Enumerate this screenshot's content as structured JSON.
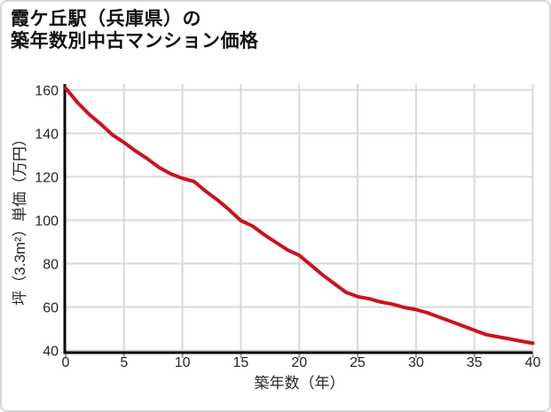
{
  "card": {
    "title_line1": "霞ケ丘駅（兵庫県）の",
    "title_line2": "築年数別中古マンション価格"
  },
  "chart_data": {
    "type": "line",
    "title": "霞ケ丘駅（兵庫県）の築年数別中古マンション価格",
    "xlabel": "築年数（年）",
    "ylabel": "坪（3.3m²）単価（万円）",
    "x": [
      0,
      1,
      2,
      3,
      4,
      5,
      6,
      7,
      8,
      9,
      10,
      11,
      12,
      13,
      14,
      15,
      16,
      17,
      18,
      19,
      20,
      21,
      22,
      23,
      24,
      25,
      26,
      27,
      28,
      29,
      30,
      31,
      32,
      33,
      34,
      35,
      36,
      37,
      38,
      39,
      40
    ],
    "y": [
      161,
      154.5,
      149,
      144.5,
      139.5,
      136,
      132,
      128.5,
      124.5,
      121.5,
      119.5,
      118,
      113.5,
      109.5,
      105,
      100,
      97.5,
      93.5,
      90,
      86.5,
      84,
      79.5,
      75,
      71,
      67,
      65,
      64,
      62.5,
      61.5,
      60,
      59,
      57.5,
      55.5,
      53.5,
      51.5,
      49.5,
      47.5,
      46.5,
      45.5,
      44.5,
      43.5
    ],
    "x_ticks": [
      0,
      5,
      10,
      15,
      20,
      25,
      30,
      35,
      40
    ],
    "y_ticks": [
      40,
      60,
      80,
      100,
      120,
      140,
      160
    ],
    "xlim": [
      0,
      40
    ],
    "ylim": [
      40,
      160
    ],
    "grid": "on",
    "legend": "none",
    "line_color": "#c9141e",
    "grid_color": "#d9d9d9",
    "axis_color": "#000000",
    "tick_text_color": "#262626"
  }
}
